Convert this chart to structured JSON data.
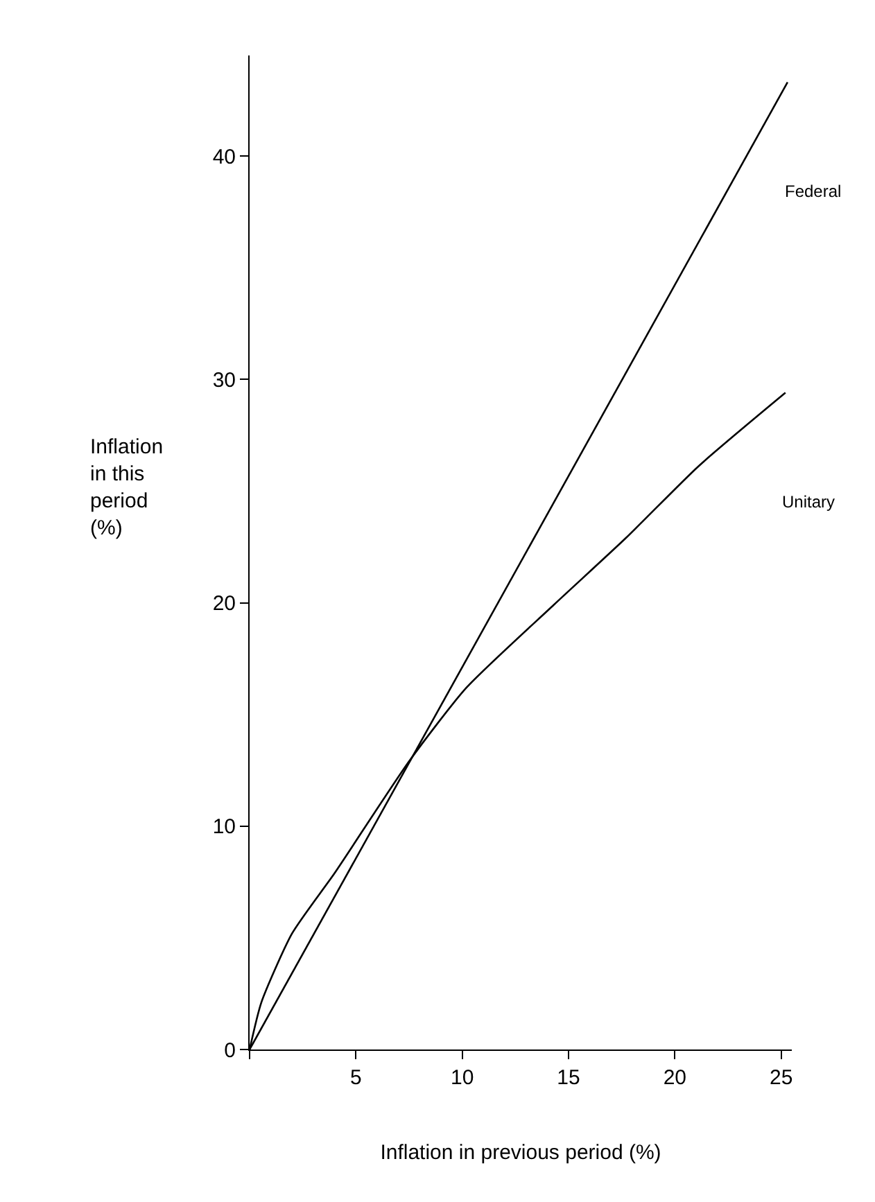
{
  "chart_data": {
    "type": "line",
    "xlabel": "Inflation in previous period (%)",
    "ylabel": "Inflation\nin this\nperiod\n(%)",
    "series": [
      {
        "name": "Federal",
        "color": "#000000",
        "x": [
          0,
          25.3
        ],
        "values": [
          0,
          43.3
        ]
      },
      {
        "name": "Unitary",
        "color": "#000000",
        "x": [
          0,
          0.55,
          2.0,
          4.0,
          7.5,
          10.2,
          14.3,
          17.7,
          21.1,
          25.2
        ],
        "values": [
          0,
          2.1,
          5.2,
          7.9,
          12.9,
          16.2,
          19.9,
          22.9,
          26.1,
          29.4
        ]
      }
    ],
    "xlim": [
      0,
      25.5
    ],
    "ylim": [
      0,
      44.5
    ],
    "xticks": [
      {
        "value": 0,
        "label": null
      },
      5,
      10,
      15,
      20,
      25
    ],
    "yticks": [
      0,
      10,
      20,
      30,
      40
    ],
    "legend": false,
    "marker": "none",
    "line_style": "solid"
  }
}
